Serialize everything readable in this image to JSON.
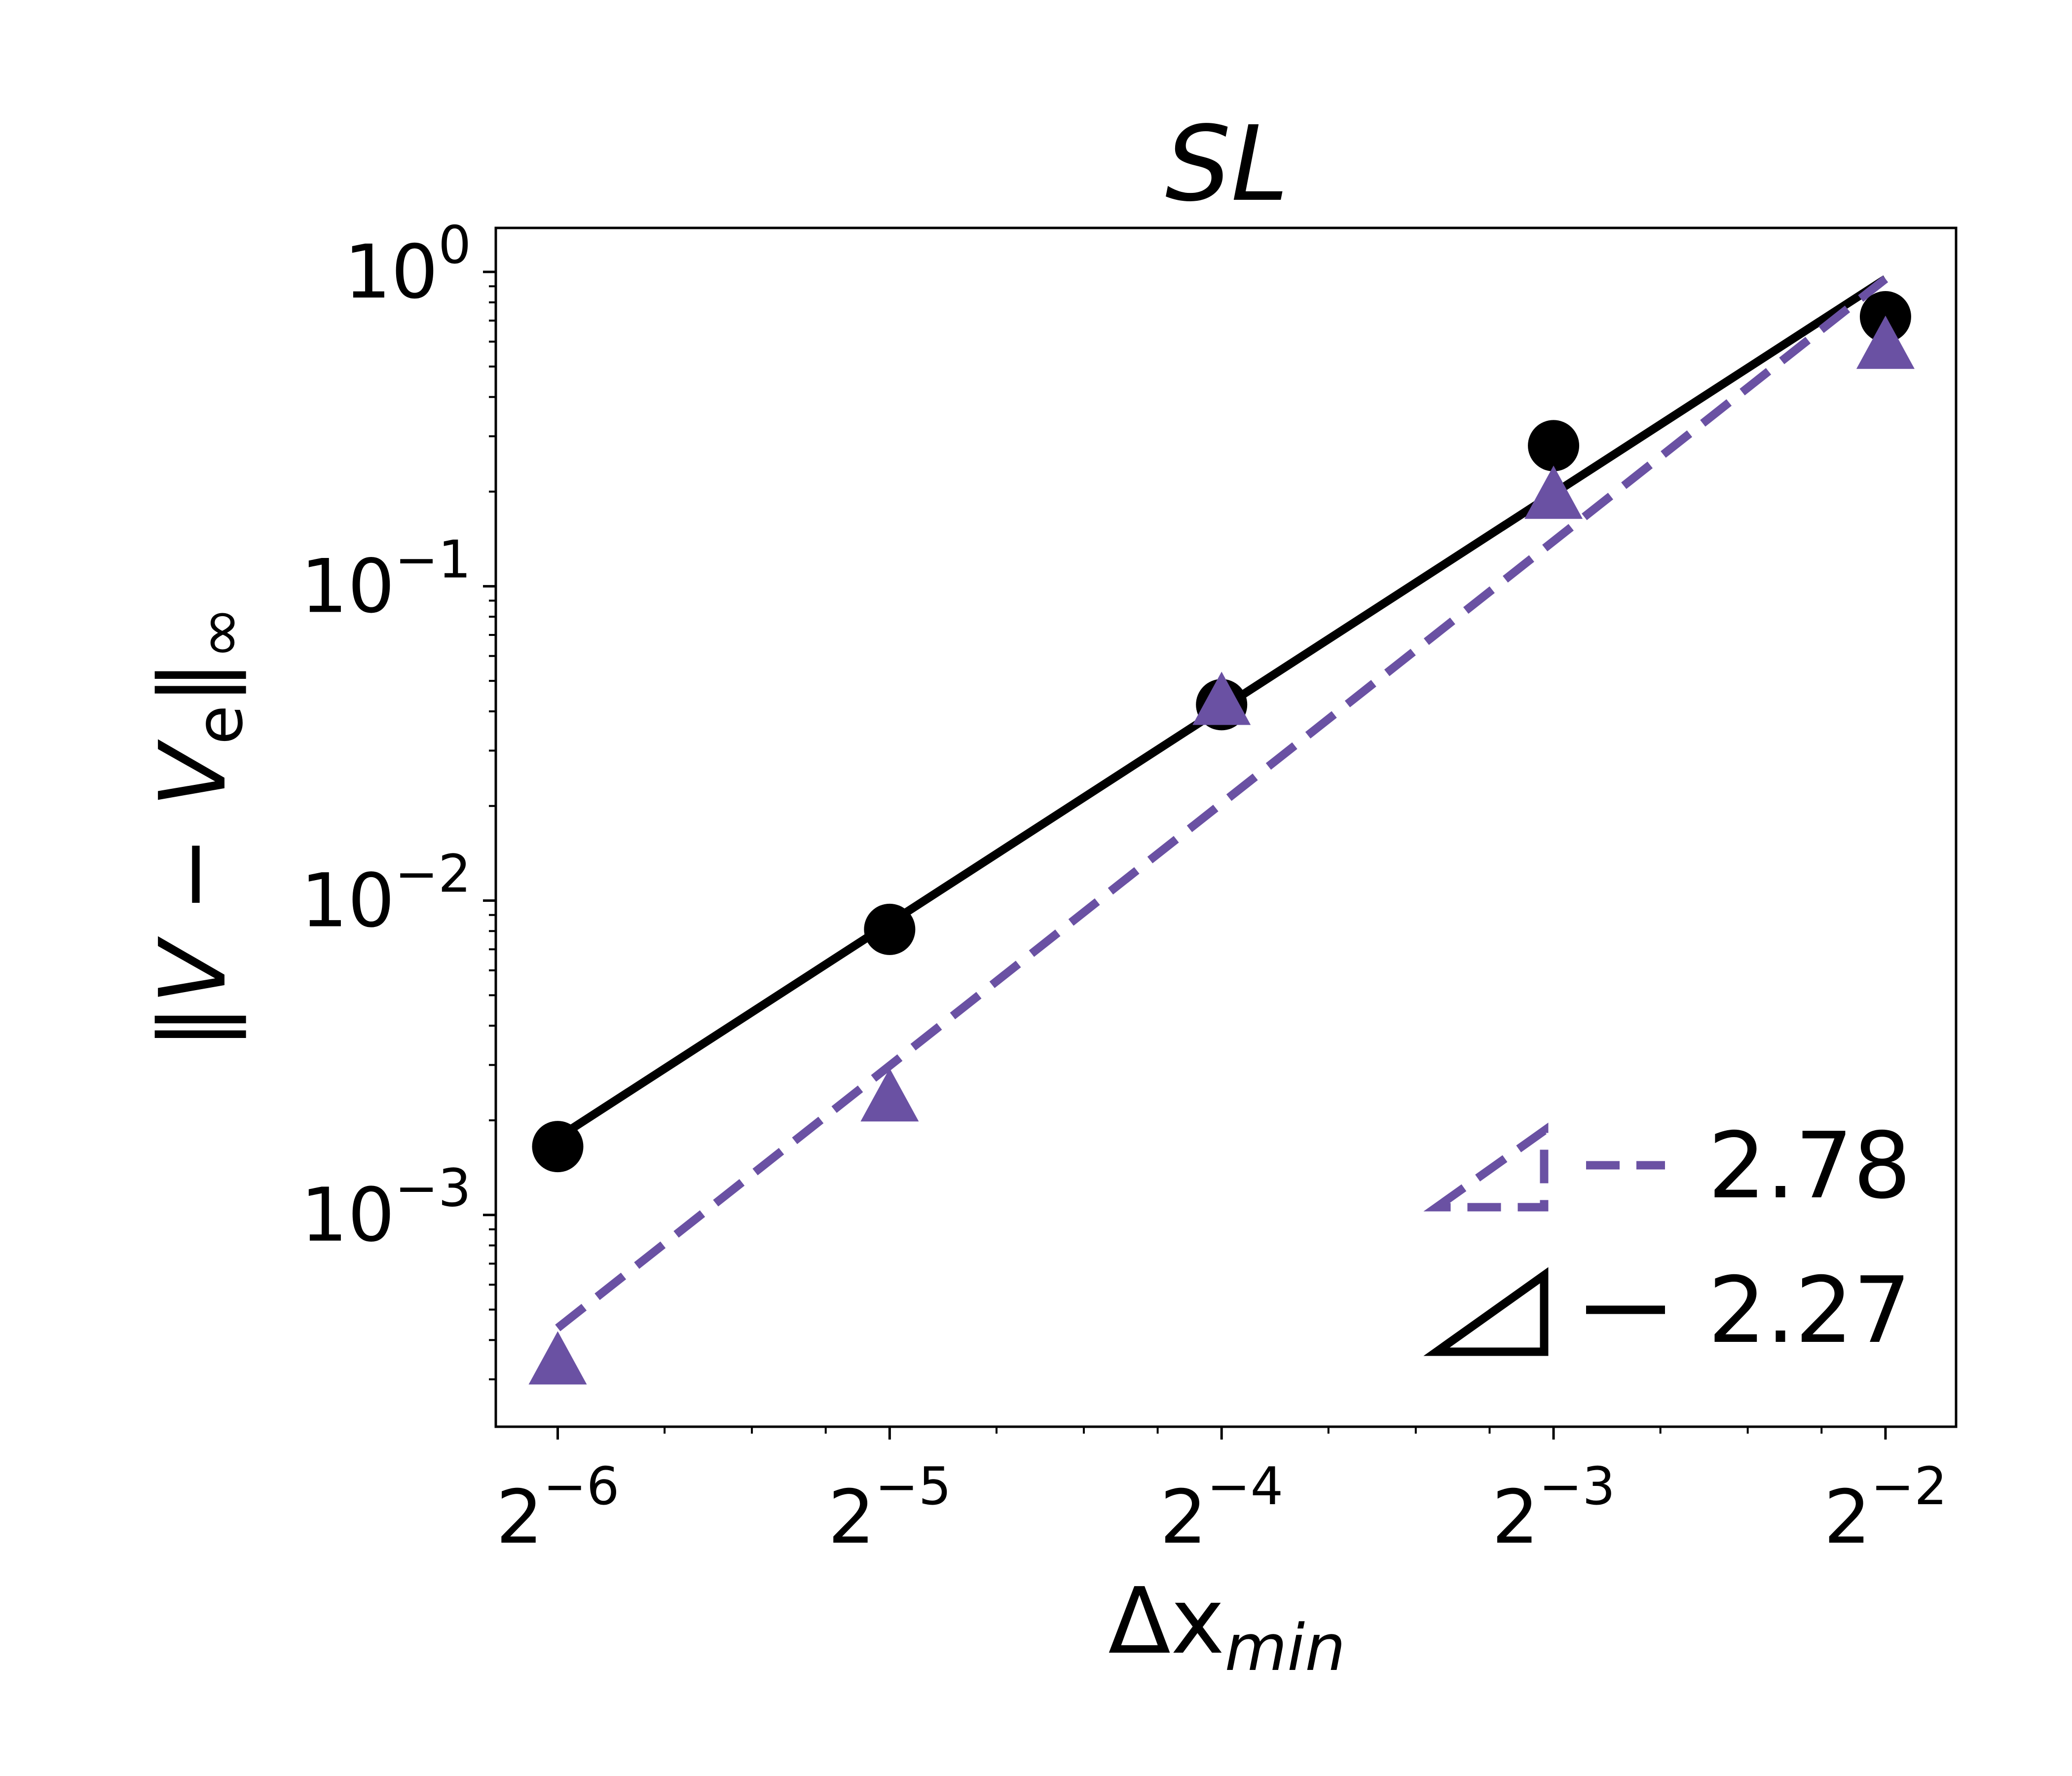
{
  "chart_data": {
    "type": "line",
    "title": "SL",
    "xlabel": "Δx_min",
    "ylabel": "‖V − V_e‖_∞",
    "x_scale": "log2",
    "y_scale": "log10",
    "xlim": [
      0.01373,
      0.2897
    ],
    "ylim": [
      0.000212,
      1.38
    ],
    "x_ticks": [
      {
        "value": 0.015625,
        "base": "2",
        "exp": "−6"
      },
      {
        "value": 0.03125,
        "base": "2",
        "exp": "−5"
      },
      {
        "value": 0.0625,
        "base": "2",
        "exp": "−4"
      },
      {
        "value": 0.125,
        "base": "2",
        "exp": "−3"
      },
      {
        "value": 0.25,
        "base": "2",
        "exp": "−2"
      }
    ],
    "y_ticks": [
      {
        "value": 1,
        "base": "10",
        "exp": "0"
      },
      {
        "value": 0.1,
        "base": "10",
        "exp": "−1"
      },
      {
        "value": 0.01,
        "base": "10",
        "exp": "−2"
      },
      {
        "value": 0.001,
        "base": "10",
        "exp": "−3"
      }
    ],
    "grid": false,
    "legend_position": "lower-right",
    "series": [
      {
        "key": "black",
        "name": "2.27",
        "color": "#000000",
        "marker": "circle",
        "line_style": "solid",
        "x": [
          0.015625,
          0.03125,
          0.0625,
          0.125,
          0.25
        ],
        "y": [
          0.00165,
          0.0081,
          0.042,
          0.28,
          0.72
        ],
        "fit": {
          "x": [
            0.015625,
            0.25
          ],
          "y": [
            0.00176,
            0.95
          ]
        }
      },
      {
        "key": "purple",
        "name": "2.78",
        "color": "#6a51a3",
        "marker": "triangle",
        "line_style": "dashed",
        "x": [
          0.015625,
          0.03125,
          0.0625,
          0.125,
          0.25
        ],
        "y": [
          0.000335,
          0.0023,
          0.042,
          0.19,
          0.57
        ],
        "fit": {
          "x": [
            0.015625,
            0.25
          ],
          "y": [
            0.000437,
            0.95
          ]
        }
      }
    ]
  }
}
